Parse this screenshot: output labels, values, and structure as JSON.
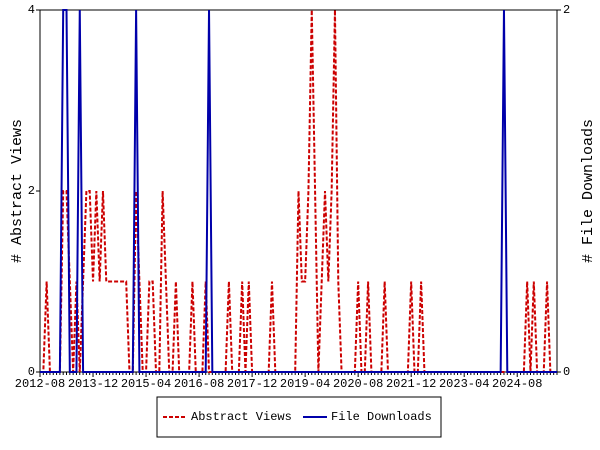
{
  "chart_data": {
    "type": "line",
    "y_label": "# Abstract Views",
    "y2_label": "# File Downloads",
    "categories": [
      "2012-08",
      null,
      null,
      null,
      null,
      null,
      null,
      null,
      null,
      null,
      null,
      null,
      null,
      null,
      null,
      null,
      "2013-12",
      null,
      null,
      null,
      null,
      null,
      null,
      null,
      null,
      null,
      null,
      null,
      null,
      null,
      null,
      null,
      "2015-04",
      null,
      null,
      null,
      null,
      null,
      null,
      null,
      null,
      null,
      null,
      null,
      null,
      null,
      null,
      null,
      "2016-08",
      null,
      null,
      null,
      null,
      null,
      null,
      null,
      null,
      null,
      null,
      null,
      null,
      null,
      null,
      null,
      "2017-12",
      null,
      null,
      null,
      null,
      null,
      null,
      null,
      null,
      null,
      null,
      null,
      null,
      null,
      null,
      null,
      "2019-04",
      null,
      null,
      null,
      null,
      null,
      null,
      null,
      null,
      null,
      null,
      null,
      null,
      null,
      null,
      null,
      "2020-08",
      null,
      null,
      null,
      null,
      null,
      null,
      null,
      null,
      null,
      null,
      null,
      null,
      null,
      null,
      null,
      "2021-12",
      null,
      null,
      null,
      null,
      null,
      null,
      null,
      null,
      null,
      null,
      null,
      null,
      null,
      null,
      null,
      "2023-04",
      null,
      null,
      null,
      null,
      null,
      null,
      null,
      null,
      null,
      null,
      null,
      null,
      null,
      null,
      null,
      "2024-08",
      null,
      null,
      null,
      null,
      null,
      null,
      null,
      null,
      null,
      null,
      null,
      null
    ],
    "series": [
      {
        "name": "Abstract Views",
        "color": "#cc0000",
        "dashed": true,
        "values": [
          0,
          0,
          1,
          0,
          0,
          0,
          0,
          2,
          2,
          1,
          0,
          1,
          0,
          1,
          2,
          2,
          1,
          2,
          1,
          2,
          1,
          1,
          1,
          1,
          1,
          1,
          1,
          0,
          0,
          2,
          1,
          0,
          0,
          1,
          1,
          0,
          0,
          2,
          1,
          0,
          0,
          1,
          0,
          0,
          0,
          0,
          1,
          0,
          0,
          0,
          1,
          0,
          0,
          0,
          0,
          0,
          0,
          1,
          0,
          0,
          0,
          1,
          0,
          1,
          0,
          0,
          0,
          0,
          0,
          0,
          1,
          0,
          0,
          0,
          0,
          0,
          0,
          0,
          2,
          1,
          1,
          2,
          4,
          2,
          0,
          1,
          2,
          1,
          2,
          4,
          1,
          0,
          0,
          0,
          0,
          0,
          1,
          0,
          0,
          1,
          0,
          0,
          0,
          0,
          1,
          0,
          0,
          0,
          0,
          0,
          0,
          0,
          1,
          0,
          0,
          1,
          0,
          0,
          0,
          0,
          0,
          0,
          0,
          0,
          0,
          0,
          0,
          0,
          0,
          0,
          0,
          0,
          0,
          0,
          0,
          0,
          0,
          0,
          0,
          0,
          0,
          0,
          0,
          0,
          0,
          0,
          0,
          1,
          0,
          1,
          0,
          0,
          0,
          1,
          0,
          0,
          0
        ]
      },
      {
        "name": "File Downloads",
        "color": "#0000aa",
        "dashed": false,
        "axis": "y2",
        "values": [
          0,
          0,
          0,
          0,
          0,
          0,
          0,
          2,
          2,
          0,
          0,
          0,
          2,
          0,
          0,
          0,
          0,
          0,
          0,
          0,
          0,
          0,
          0,
          0,
          0,
          0,
          0,
          0,
          0,
          2,
          0,
          0,
          0,
          0,
          0,
          0,
          0,
          0,
          0,
          0,
          0,
          0,
          0,
          0,
          0,
          0,
          0,
          0,
          0,
          0,
          0,
          2,
          0,
          0,
          0,
          0,
          0,
          0,
          0,
          0,
          0,
          0,
          0,
          0,
          0,
          0,
          0,
          0,
          0,
          0,
          0,
          0,
          0,
          0,
          0,
          0,
          0,
          0,
          0,
          0,
          0,
          0,
          0,
          0,
          0,
          0,
          0,
          0,
          0,
          0,
          0,
          0,
          0,
          0,
          0,
          0,
          0,
          0,
          0,
          0,
          0,
          0,
          0,
          0,
          0,
          0,
          0,
          0,
          0,
          0,
          0,
          0,
          0,
          0,
          0,
          0,
          0,
          0,
          0,
          0,
          0,
          0,
          0,
          0,
          0,
          0,
          0,
          0,
          0,
          0,
          0,
          0,
          0,
          0,
          0,
          0,
          0,
          0,
          0,
          0,
          2,
          0,
          0,
          0,
          0,
          0,
          0,
          0,
          0,
          0,
          0,
          0,
          0,
          0,
          0,
          0,
          0
        ]
      }
    ],
    "ylim": [
      0,
      4
    ],
    "yticks": [
      0,
      2,
      4
    ],
    "y2lim": [
      0,
      2
    ],
    "y2ticks": [
      0,
      2
    ],
    "legend": "bottom"
  }
}
